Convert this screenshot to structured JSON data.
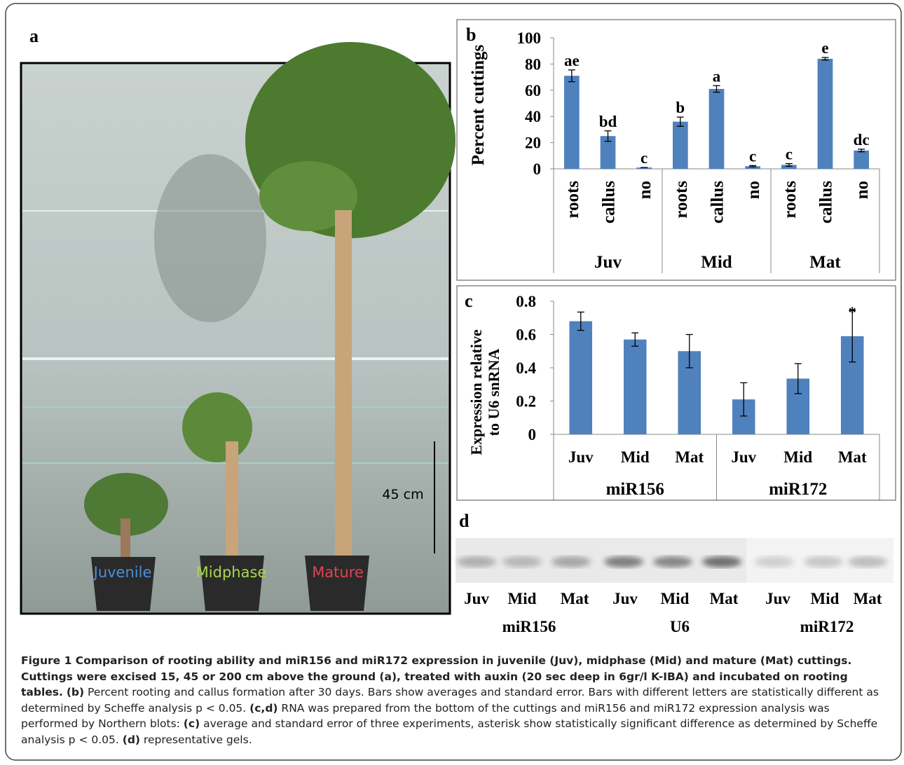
{
  "photo": {
    "panel": "a",
    "labels": [
      "Juvenile",
      "Midphase",
      "Mature"
    ],
    "label_colors": [
      "#4a90d9",
      "#a9d84e",
      "#e0444f"
    ],
    "scale_bar": "45 cm"
  },
  "chart_data": [
    {
      "type": "bar",
      "panel": "b",
      "y_label": "Percent cuttings",
      "categories": [
        "roots",
        "callus",
        "no",
        "roots",
        "callus",
        "no",
        "roots",
        "callus",
        "no"
      ],
      "groups": [
        "Juv",
        "Mid",
        "Mat"
      ],
      "series": [
        {
          "color": "#4f81bd",
          "values": [
            71,
            25,
            1,
            36,
            61,
            2,
            3,
            84,
            14
          ],
          "errors": [
            4.5,
            4,
            0,
            3.5,
            2.5,
            0.5,
            1,
            1,
            1
          ]
        }
      ],
      "letters": [
        "ae",
        "bd",
        "c",
        "b",
        "a",
        "c",
        "c",
        "e",
        "dc"
      ],
      "ylim": [
        0,
        100
      ],
      "yticks": [
        0,
        20,
        40,
        60,
        80,
        100
      ]
    },
    {
      "type": "bar",
      "panel": "c",
      "y_label": [
        "Expression  relative",
        "to U6 snRNA"
      ],
      "categories": [
        "Juv",
        "Mid",
        "Mat",
        "Juv",
        "Mid",
        "Mat"
      ],
      "groups": [
        "miR156",
        "miR172"
      ],
      "series": [
        {
          "color": "#4f81bd",
          "values": [
            0.68,
            0.57,
            0.5,
            0.21,
            0.335,
            0.59
          ],
          "errors": [
            0.055,
            0.04,
            0.1,
            0.1,
            0.09,
            0.155
          ]
        }
      ],
      "markers": [
        {
          "bar": 5,
          "text": "*"
        }
      ],
      "ylim": [
        0,
        0.8
      ],
      "yticks": [
        0,
        0.2,
        0.4,
        0.6,
        0.8
      ]
    }
  ],
  "gel": {
    "panel": "d",
    "lanes": [
      "Juv",
      "Mid",
      "Mat",
      "Juv",
      "Mid",
      "Mat",
      "Juv",
      "Mid",
      "Mat"
    ],
    "groups": [
      "miR156",
      "U6",
      "miR172"
    ]
  },
  "caption": [
    {
      "text": "Figure 1 Comparison of rooting ability and miR156 and miR172 expression in juvenile (Juv), midphase (Mid) and mature (Mat) cuttings. Cuttings were excised 15, 45 or 200 cm above the ground (a), treated with auxin (20 sec deep in 6gr/l K-IBA) and incubated on rooting tables.",
      "bold": true
    },
    {
      "text": " ",
      "bold": false
    },
    {
      "text": "(b)",
      "bold": true
    },
    {
      "text": " Percent rooting and callus formation after 30 days. Bars show averages and standard error. Bars with different letters are statistically different as determined by Scheffe analysis p < 0.05. ",
      "bold": false
    },
    {
      "text": "(c,d)",
      "bold": true
    },
    {
      "text": " RNA was prepared from the bottom of the cuttings and miR156 and miR172 expression analysis was performed by Northern blots: ",
      "bold": false
    },
    {
      "text": "(c)",
      "bold": true
    },
    {
      "text": " average and standard error of three experiments, asterisk show statistically significant difference as determined by Scheffe analysis p < 0.05. ",
      "bold": false
    },
    {
      "text": "(d)",
      "bold": true
    },
    {
      "text": " representative gels.",
      "bold": false
    }
  ]
}
